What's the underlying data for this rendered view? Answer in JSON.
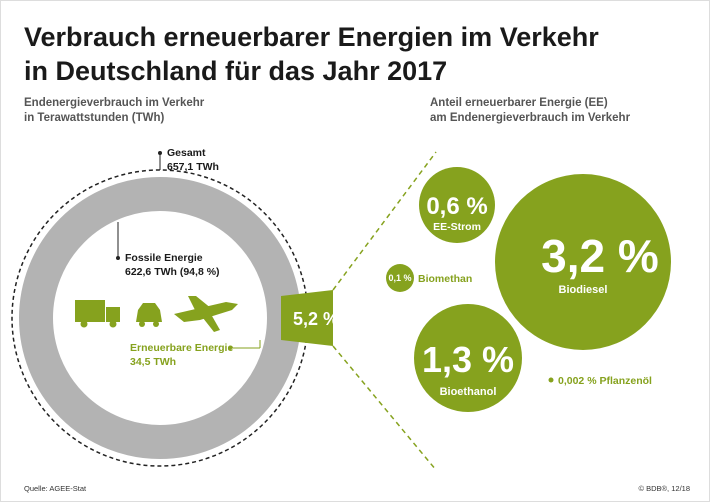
{
  "header": {
    "title_lines": [
      "Verbrauch erneuerbarer Energien im Verkehr",
      "in Deutschland für das Jahr 2017"
    ]
  },
  "left": {
    "subtitle_lines": [
      "Endenergieverbrauch im Verkehr",
      "in Terawattstunden (TWh)"
    ],
    "total": {
      "label": "Gesamt",
      "value": "657,1 TWh"
    },
    "fossil": {
      "label": "Fossile Energie",
      "value": "622,6 TWh (94,8 %)"
    },
    "renewable": {
      "label": "Erneuerbare Energie",
      "value": "34,5 TWh",
      "share": "5,2 %"
    }
  },
  "right": {
    "subtitle_lines": [
      "Anteil erneuerbarer Energie (EE)",
      "am Endenergieverbrauch im Verkehr"
    ],
    "items": [
      {
        "value": "0,6 %",
        "label": "EE-Strom"
      },
      {
        "value": "3,2 %",
        "label": "Biodiesel"
      },
      {
        "value": "0,1 %",
        "label": "Biomethan"
      },
      {
        "value": "1,3 %",
        "label": "Bioethanol"
      },
      {
        "value": "0,002 % Pflanzenöl"
      }
    ]
  },
  "footer": {
    "source": "Quelle: AGEE-Stat",
    "credit": "© BDB®, 12/18"
  }
}
